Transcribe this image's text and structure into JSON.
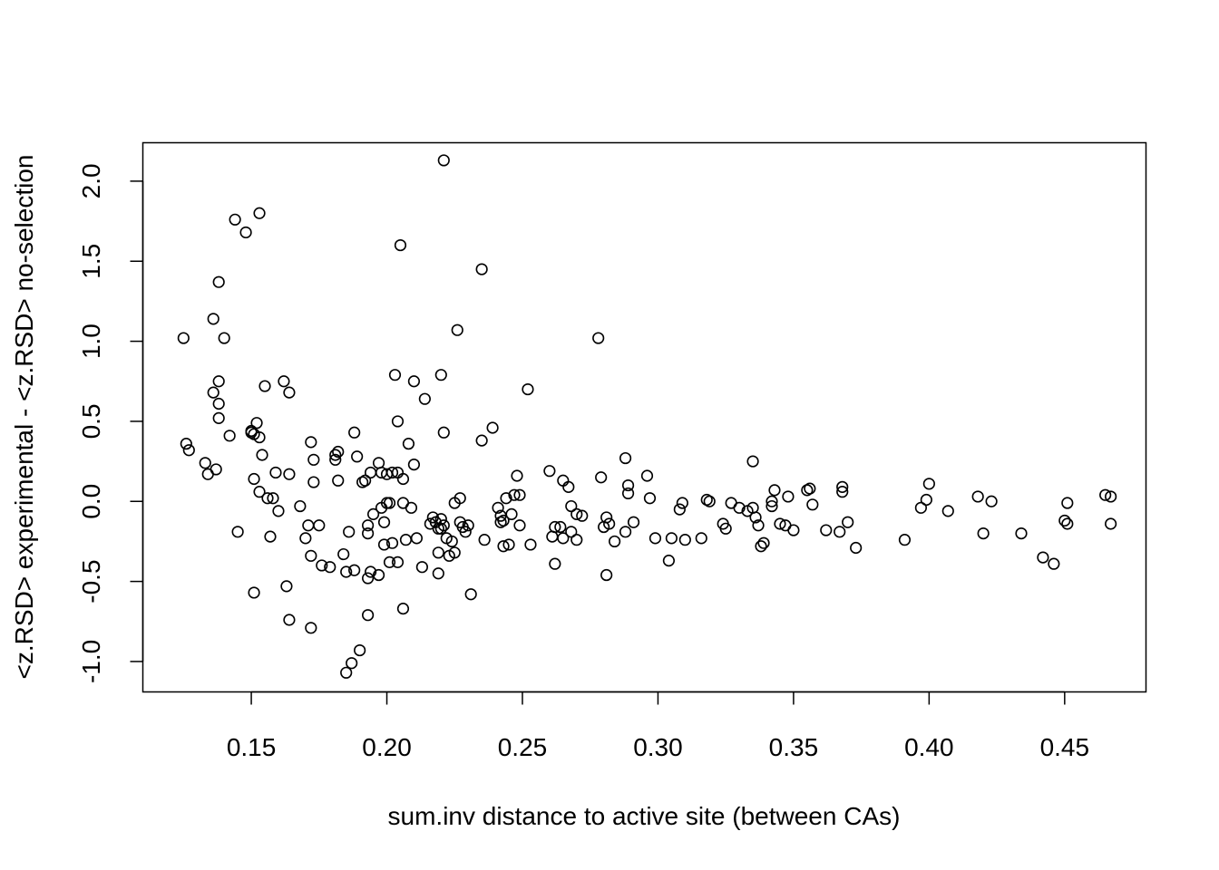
{
  "chart_data": {
    "type": "scatter",
    "title": "",
    "xlabel": "sum.inv distance to active site (between CAs)",
    "ylabel": "<z.RSD> experimental - <z.RSD> no-selection",
    "xlim": [
      0.11,
      0.48
    ],
    "ylim": [
      -1.19,
      2.24
    ],
    "xticks": [
      0.15,
      0.2,
      0.25,
      0.3,
      0.35,
      0.4,
      0.45
    ],
    "xtick_labels": [
      "0.15",
      "0.20",
      "0.25",
      "0.30",
      "0.35",
      "0.40",
      "0.45"
    ],
    "yticks": [
      -1.0,
      -0.5,
      0.0,
      0.5,
      1.0,
      1.5,
      2.0
    ],
    "ytick_labels": [
      "-1.0",
      "-0.5",
      "0.0",
      "0.5",
      "1.0",
      "1.5",
      "2.0"
    ],
    "grid": false,
    "points": [
      [
        0.125,
        1.02
      ],
      [
        0.126,
        0.36
      ],
      [
        0.127,
        0.32
      ],
      [
        0.133,
        0.24
      ],
      [
        0.134,
        0.17
      ],
      [
        0.136,
        0.68
      ],
      [
        0.136,
        1.14
      ],
      [
        0.137,
        0.2
      ],
      [
        0.138,
        1.37
      ],
      [
        0.138,
        0.75
      ],
      [
        0.138,
        0.61
      ],
      [
        0.138,
        0.52
      ],
      [
        0.14,
        1.02
      ],
      [
        0.142,
        0.41
      ],
      [
        0.144,
        1.76
      ],
      [
        0.145,
        -0.19
      ],
      [
        0.148,
        1.68
      ],
      [
        0.15,
        0.43
      ],
      [
        0.15,
        0.44
      ],
      [
        0.151,
        0.42
      ],
      [
        0.151,
        -0.57
      ],
      [
        0.151,
        0.14
      ],
      [
        0.152,
        0.49
      ],
      [
        0.153,
        1.8
      ],
      [
        0.153,
        0.4
      ],
      [
        0.153,
        0.06
      ],
      [
        0.154,
        0.29
      ],
      [
        0.155,
        0.72
      ],
      [
        0.156,
        0.02
      ],
      [
        0.157,
        -0.22
      ],
      [
        0.158,
        0.02
      ],
      [
        0.159,
        0.18
      ],
      [
        0.16,
        -0.06
      ],
      [
        0.162,
        0.75
      ],
      [
        0.163,
        -0.53
      ],
      [
        0.164,
        0.68
      ],
      [
        0.164,
        0.17
      ],
      [
        0.164,
        -0.74
      ],
      [
        0.168,
        -0.03
      ],
      [
        0.17,
        -0.23
      ],
      [
        0.171,
        -0.15
      ],
      [
        0.172,
        -0.79
      ],
      [
        0.172,
        -0.34
      ],
      [
        0.172,
        0.37
      ],
      [
        0.173,
        0.26
      ],
      [
        0.173,
        0.12
      ],
      [
        0.175,
        -0.15
      ],
      [
        0.176,
        -0.4
      ],
      [
        0.179,
        -0.41
      ],
      [
        0.181,
        0.29
      ],
      [
        0.181,
        0.26
      ],
      [
        0.182,
        0.31
      ],
      [
        0.182,
        0.13
      ],
      [
        0.184,
        -0.33
      ],
      [
        0.185,
        -0.44
      ],
      [
        0.185,
        -1.07
      ],
      [
        0.186,
        -0.19
      ],
      [
        0.187,
        -1.01
      ],
      [
        0.188,
        0.43
      ],
      [
        0.188,
        -0.43
      ],
      [
        0.189,
        0.28
      ],
      [
        0.19,
        -0.93
      ],
      [
        0.191,
        0.12
      ],
      [
        0.192,
        0.13
      ],
      [
        0.193,
        -0.2
      ],
      [
        0.193,
        -0.15
      ],
      [
        0.193,
        -0.71
      ],
      [
        0.193,
        -0.48
      ],
      [
        0.194,
        0.18
      ],
      [
        0.194,
        -0.44
      ],
      [
        0.195,
        -0.08
      ],
      [
        0.197,
        -0.46
      ],
      [
        0.197,
        0.24
      ],
      [
        0.198,
        0.18
      ],
      [
        0.198,
        -0.04
      ],
      [
        0.199,
        -0.27
      ],
      [
        0.199,
        -0.13
      ],
      [
        0.2,
        0.17
      ],
      [
        0.2,
        -0.01
      ],
      [
        0.201,
        -0.01
      ],
      [
        0.201,
        -0.38
      ],
      [
        0.202,
        -0.26
      ],
      [
        0.202,
        0.18
      ],
      [
        0.203,
        0.79
      ],
      [
        0.204,
        0.5
      ],
      [
        0.204,
        0.18
      ],
      [
        0.204,
        -0.38
      ],
      [
        0.205,
        1.6
      ],
      [
        0.206,
        0.14
      ],
      [
        0.206,
        -0.01
      ],
      [
        0.206,
        -0.67
      ],
      [
        0.207,
        -0.24
      ],
      [
        0.208,
        0.36
      ],
      [
        0.209,
        -0.04
      ],
      [
        0.21,
        0.23
      ],
      [
        0.21,
        0.75
      ],
      [
        0.211,
        -0.23
      ],
      [
        0.213,
        -0.41
      ],
      [
        0.214,
        0.64
      ],
      [
        0.216,
        -0.14
      ],
      [
        0.217,
        -0.1
      ],
      [
        0.218,
        -0.13
      ],
      [
        0.219,
        -0.32
      ],
      [
        0.219,
        -0.45
      ],
      [
        0.219,
        -0.17
      ],
      [
        0.22,
        -0.11
      ],
      [
        0.22,
        0.79
      ],
      [
        0.22,
        -0.17
      ],
      [
        0.221,
        2.13
      ],
      [
        0.221,
        0.43
      ],
      [
        0.221,
        -0.15
      ],
      [
        0.222,
        -0.23
      ],
      [
        0.223,
        -0.34
      ],
      [
        0.224,
        -0.25
      ],
      [
        0.225,
        -0.32
      ],
      [
        0.225,
        -0.01
      ],
      [
        0.226,
        1.07
      ],
      [
        0.227,
        -0.13
      ],
      [
        0.227,
        0.02
      ],
      [
        0.228,
        -0.16
      ],
      [
        0.229,
        -0.19
      ],
      [
        0.23,
        -0.15
      ],
      [
        0.231,
        -0.58
      ],
      [
        0.235,
        1.45
      ],
      [
        0.235,
        0.38
      ],
      [
        0.236,
        -0.24
      ],
      [
        0.239,
        0.46
      ],
      [
        0.241,
        -0.04
      ],
      [
        0.242,
        -0.09
      ],
      [
        0.242,
        -0.13
      ],
      [
        0.243,
        -0.12
      ],
      [
        0.243,
        -0.28
      ],
      [
        0.244,
        0.02
      ],
      [
        0.245,
        -0.27
      ],
      [
        0.246,
        -0.08
      ],
      [
        0.247,
        0.04
      ],
      [
        0.248,
        0.16
      ],
      [
        0.249,
        -0.15
      ],
      [
        0.249,
        0.04
      ],
      [
        0.252,
        0.7
      ],
      [
        0.253,
        -0.27
      ],
      [
        0.26,
        0.19
      ],
      [
        0.261,
        -0.22
      ],
      [
        0.262,
        -0.16
      ],
      [
        0.262,
        -0.39
      ],
      [
        0.264,
        -0.16
      ],
      [
        0.265,
        0.13
      ],
      [
        0.265,
        -0.23
      ],
      [
        0.267,
        0.09
      ],
      [
        0.268,
        -0.03
      ],
      [
        0.268,
        -0.19
      ],
      [
        0.27,
        -0.08
      ],
      [
        0.27,
        -0.24
      ],
      [
        0.272,
        -0.09
      ],
      [
        0.278,
        1.02
      ],
      [
        0.279,
        0.15
      ],
      [
        0.28,
        -0.16
      ],
      [
        0.281,
        -0.1
      ],
      [
        0.281,
        -0.46
      ],
      [
        0.282,
        -0.14
      ],
      [
        0.284,
        -0.25
      ],
      [
        0.288,
        -0.19
      ],
      [
        0.288,
        0.27
      ],
      [
        0.289,
        0.1
      ],
      [
        0.289,
        0.05
      ],
      [
        0.291,
        -0.13
      ],
      [
        0.296,
        0.16
      ],
      [
        0.297,
        0.02
      ],
      [
        0.299,
        -0.23
      ],
      [
        0.304,
        -0.37
      ],
      [
        0.305,
        -0.23
      ],
      [
        0.308,
        -0.05
      ],
      [
        0.309,
        -0.01
      ],
      [
        0.31,
        -0.24
      ],
      [
        0.316,
        -0.23
      ],
      [
        0.318,
        0.01
      ],
      [
        0.319,
        0.0
      ],
      [
        0.324,
        -0.14
      ],
      [
        0.325,
        -0.17
      ],
      [
        0.327,
        -0.01
      ],
      [
        0.33,
        -0.04
      ],
      [
        0.333,
        -0.06
      ],
      [
        0.335,
        0.25
      ],
      [
        0.335,
        -0.04
      ],
      [
        0.336,
        -0.1
      ],
      [
        0.337,
        -0.15
      ],
      [
        0.338,
        -0.28
      ],
      [
        0.339,
        -0.26
      ],
      [
        0.342,
        0.0
      ],
      [
        0.342,
        -0.03
      ],
      [
        0.343,
        0.07
      ],
      [
        0.345,
        -0.14
      ],
      [
        0.347,
        -0.15
      ],
      [
        0.348,
        0.03
      ],
      [
        0.35,
        -0.18
      ],
      [
        0.355,
        0.07
      ],
      [
        0.356,
        0.08
      ],
      [
        0.357,
        -0.02
      ],
      [
        0.362,
        -0.18
      ],
      [
        0.367,
        -0.19
      ],
      [
        0.368,
        0.09
      ],
      [
        0.368,
        0.06
      ],
      [
        0.37,
        -0.13
      ],
      [
        0.373,
        -0.29
      ],
      [
        0.391,
        -0.24
      ],
      [
        0.397,
        -0.04
      ],
      [
        0.399,
        0.01
      ],
      [
        0.4,
        0.11
      ],
      [
        0.407,
        -0.06
      ],
      [
        0.418,
        0.03
      ],
      [
        0.42,
        -0.2
      ],
      [
        0.423,
        0.0
      ],
      [
        0.434,
        -0.2
      ],
      [
        0.442,
        -0.35
      ],
      [
        0.446,
        -0.39
      ],
      [
        0.45,
        -0.12
      ],
      [
        0.451,
        -0.01
      ],
      [
        0.451,
        -0.14
      ],
      [
        0.465,
        0.04
      ],
      [
        0.467,
        -0.14
      ],
      [
        0.467,
        0.03
      ]
    ]
  }
}
